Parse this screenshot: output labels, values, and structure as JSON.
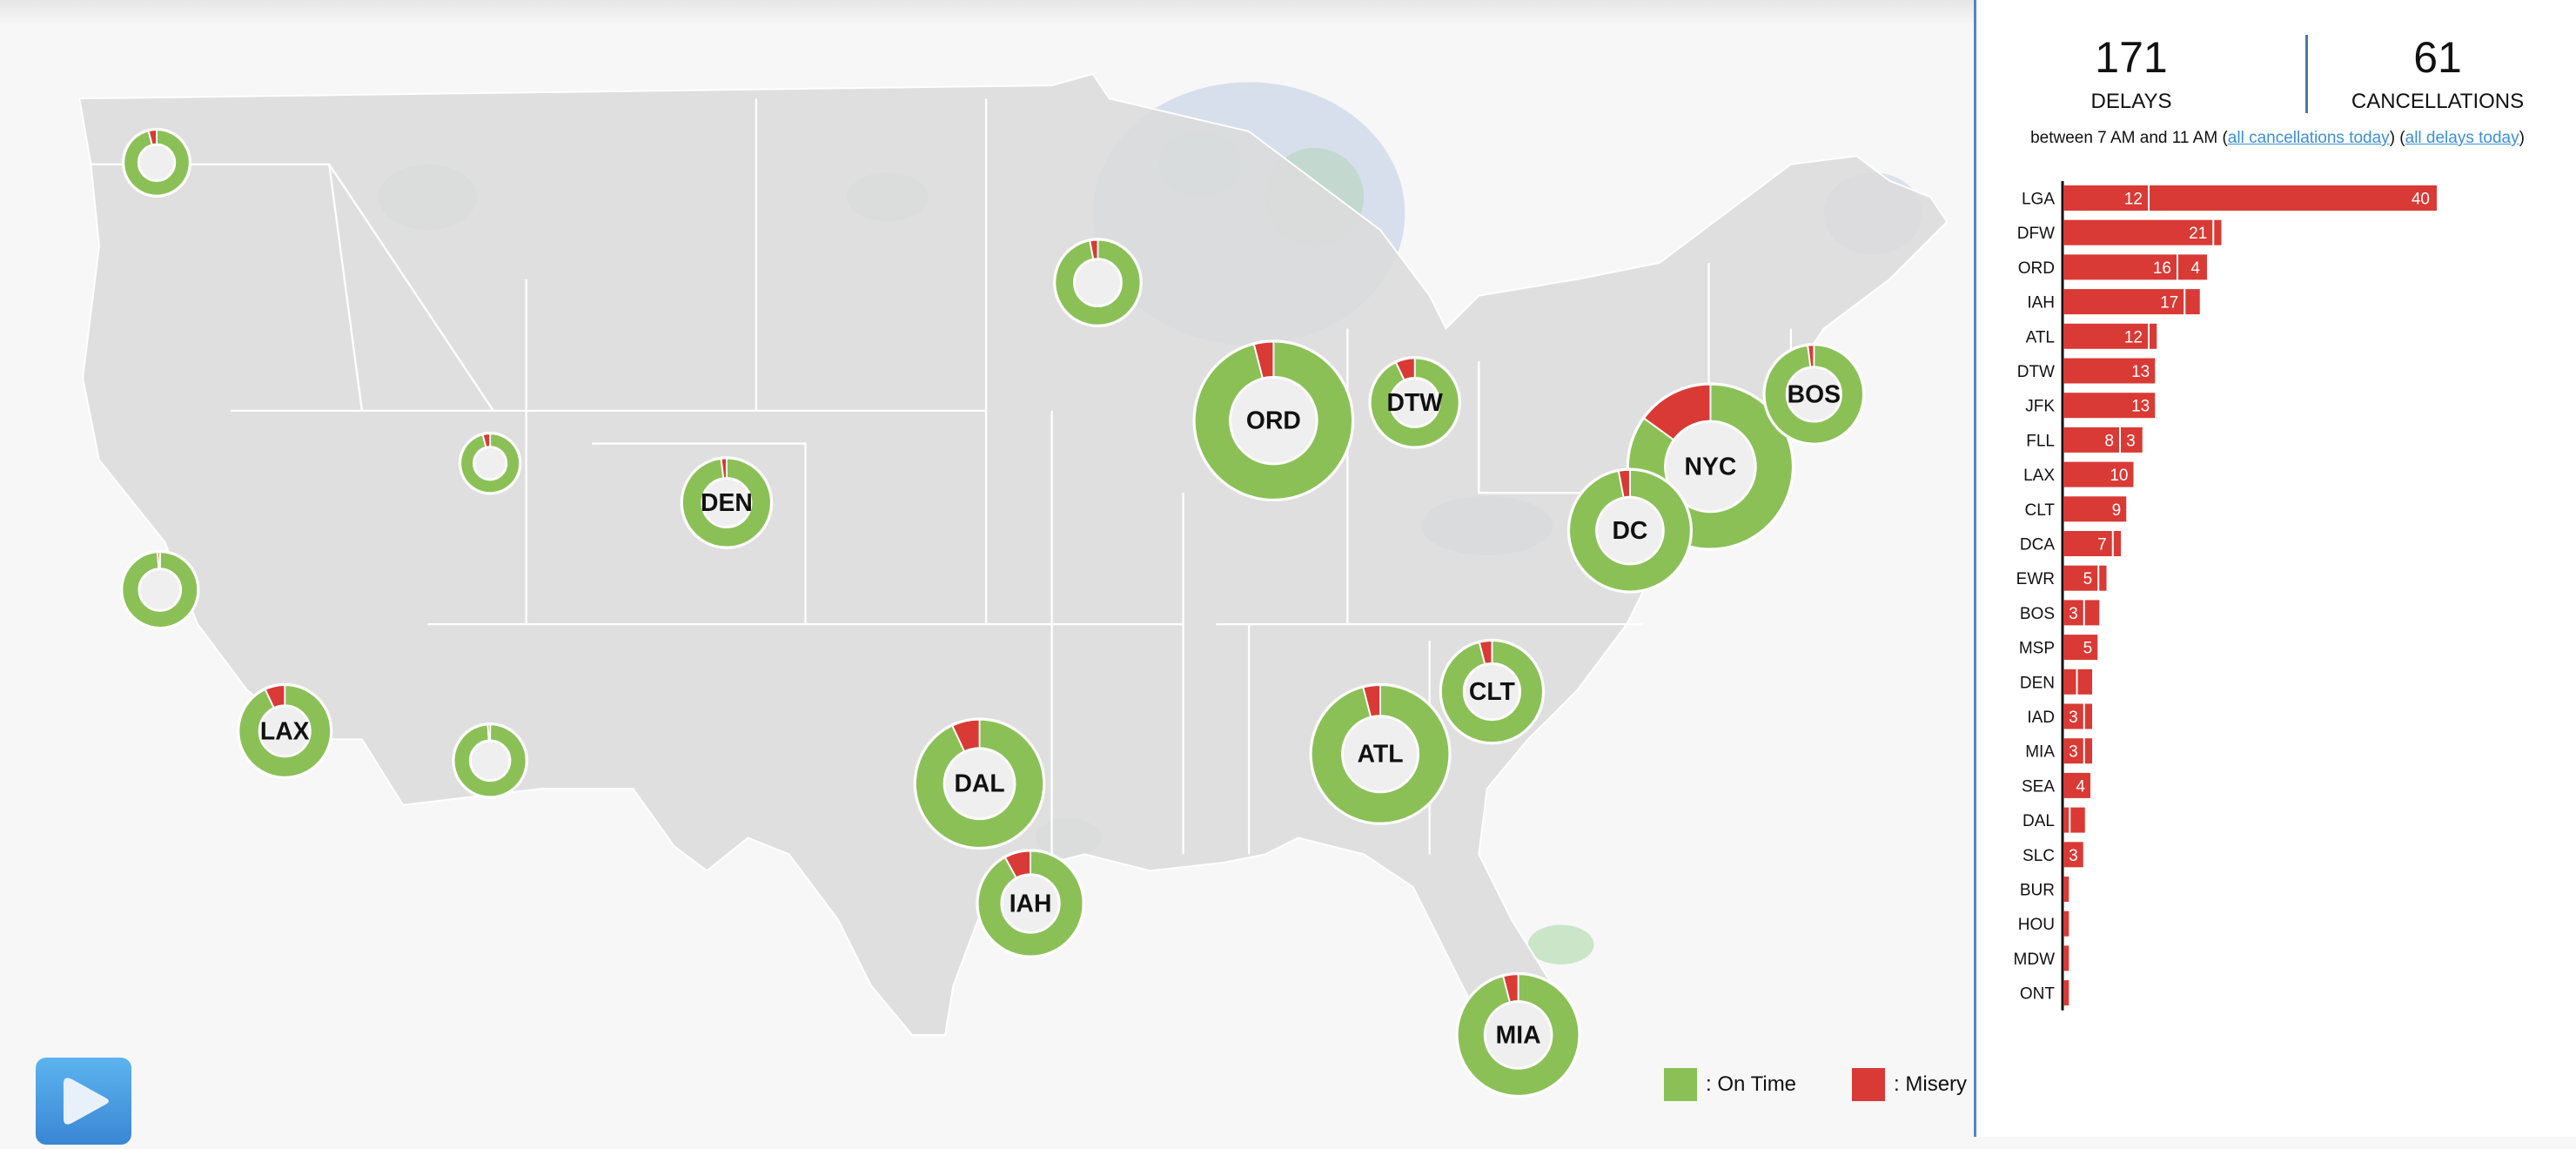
{
  "summary": {
    "delays_count": "171",
    "delays_label": "DELAYS",
    "cancellations_count": "61",
    "cancellations_label": "CANCELLATIONS",
    "subtitle_prefix": "between 7 AM and 11 AM (",
    "link_cancellations": "all cancellations today",
    "subtitle_mid": ") (",
    "link_delays": "all delays today",
    "subtitle_suffix": ")"
  },
  "legend": {
    "on_time_label": ": On Time",
    "misery_label": ": Misery",
    "on_time_color": "#8bc057",
    "misery_color": "#d93a35"
  },
  "controls": {
    "play_icon": "play-icon"
  },
  "map": {
    "airports": [
      {
        "label": "",
        "misery_pct": 4
      },
      {
        "label": "",
        "misery_pct": 3
      },
      {
        "label": "",
        "misery_pct": 4
      },
      {
        "label": "DEN",
        "misery_pct": 2
      },
      {
        "label": "",
        "misery_pct": 1
      },
      {
        "label": "LAX",
        "misery_pct": 7
      },
      {
        "label": "",
        "misery_pct": 1
      },
      {
        "label": "DAL",
        "misery_pct": 7
      },
      {
        "label": "IAH",
        "misery_pct": 8
      },
      {
        "label": "ORD",
        "misery_pct": 4
      },
      {
        "label": "DTW",
        "misery_pct": 7
      },
      {
        "label": "NYC",
        "misery_pct": 15
      },
      {
        "label": "DC",
        "misery_pct": 3
      },
      {
        "label": "BOS",
        "misery_pct": 2
      },
      {
        "label": "CLT",
        "misery_pct": 4
      },
      {
        "label": "ATL",
        "misery_pct": 4
      },
      {
        "label": "MIA",
        "misery_pct": 4
      }
    ]
  },
  "chart_data": {
    "type": "bar",
    "orientation": "horizontal",
    "stacked": true,
    "categories": [
      "LGA",
      "DFW",
      "ORD",
      "IAH",
      "ATL",
      "DTW",
      "JFK",
      "FLL",
      "LAX",
      "CLT",
      "DCA",
      "EWR",
      "BOS",
      "MSP",
      "DEN",
      "IAD",
      "MIA",
      "SEA",
      "DAL",
      "SLC",
      "BUR",
      "HOU",
      "MDW",
      "ONT"
    ],
    "series": [
      {
        "values": [
          12,
          21,
          16,
          17,
          12,
          13,
          13,
          8,
          10,
          9,
          7,
          5,
          3,
          5,
          2,
          3,
          3,
          4,
          1,
          3,
          1,
          1,
          1,
          1
        ]
      },
      {
        "values": [
          40,
          1,
          4,
          2,
          1,
          0,
          0,
          3,
          0,
          0,
          1,
          1,
          2,
          0,
          2,
          1,
          1,
          0,
          2,
          0,
          0,
          0,
          0,
          0
        ]
      }
    ],
    "color": "#d93a35"
  }
}
